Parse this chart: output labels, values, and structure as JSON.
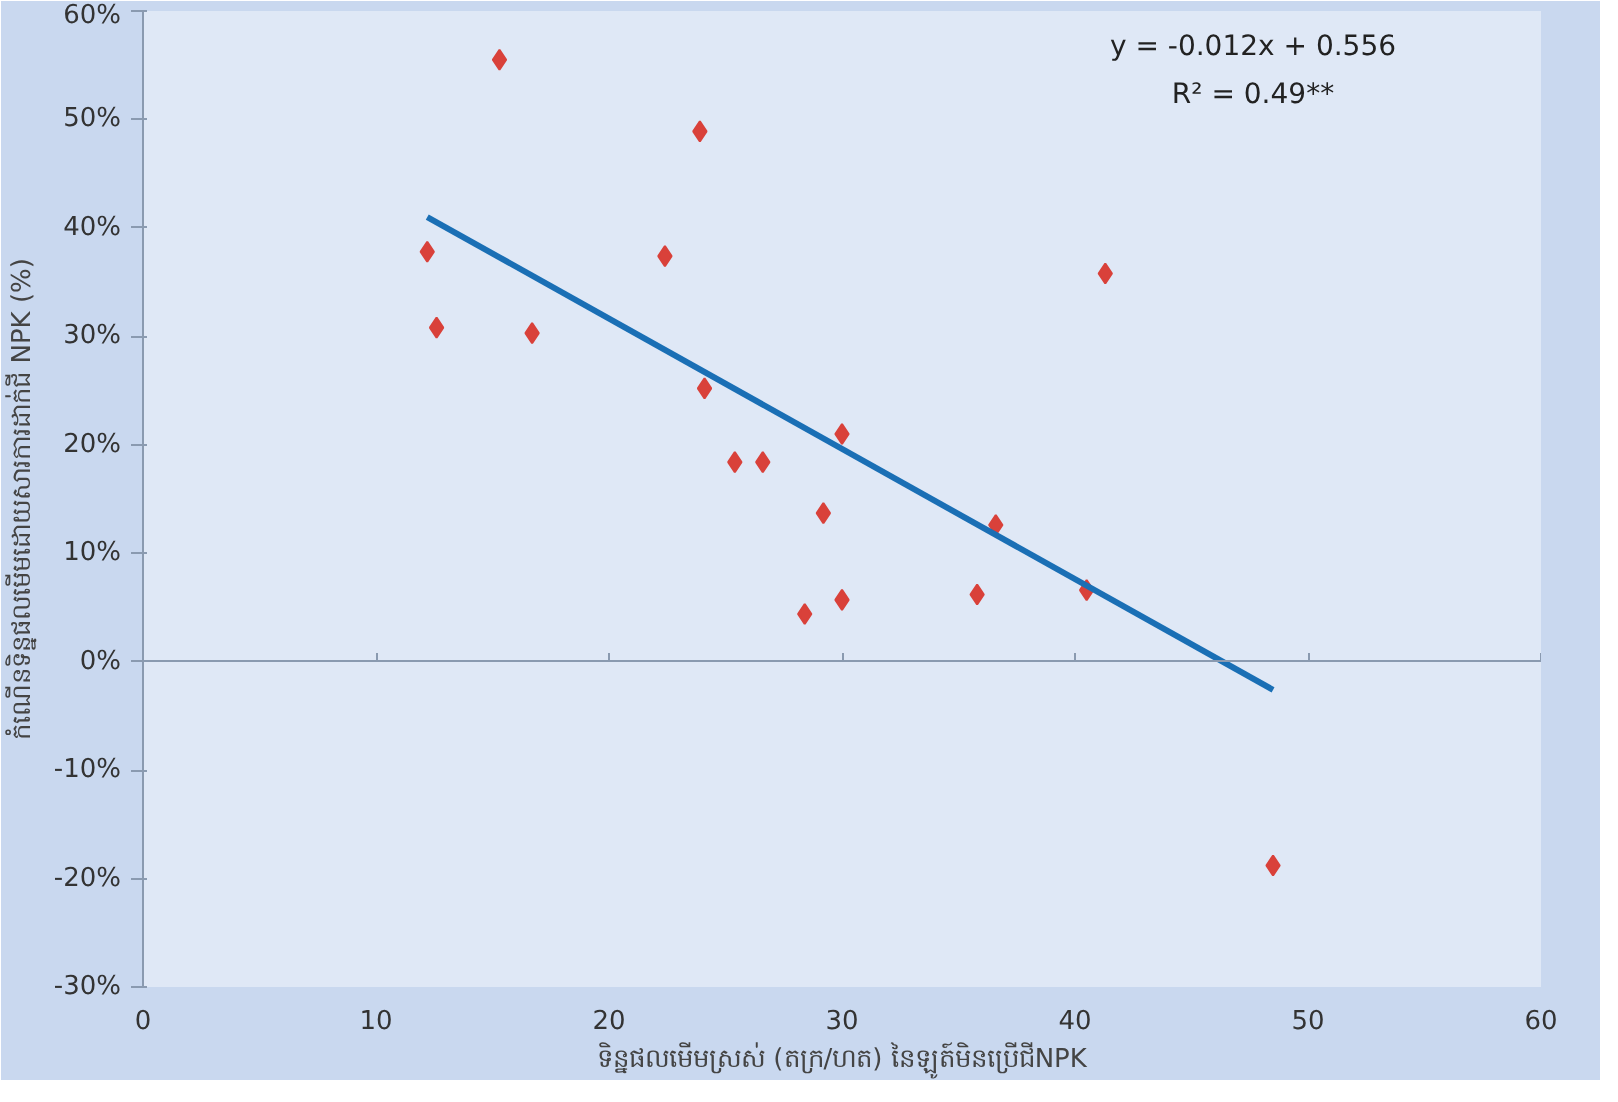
{
  "chart_data": {
    "type": "scatter",
    "xlabel": "ទិន្នផលមើមស្រស់ (តក្រ/ហត) នៃឡូត៍មិនប្រើជីNPK",
    "ylabel": "កំណើនទិន្នផលមើមដោយសារការដាក់ជី NPK (%)",
    "annotations": [
      "y = -0.012x + 0.556",
      "R² = 0.49**"
    ],
    "xlim": [
      0,
      60
    ],
    "xticks": [
      0,
      10,
      20,
      30,
      40,
      50,
      60
    ],
    "ylim": [
      -0.3,
      0.6
    ],
    "yticks": [
      {
        "value": -0.3,
        "label": "-30%"
      },
      {
        "value": -0.2,
        "label": "-20%"
      },
      {
        "value": -0.1,
        "label": "-10%"
      },
      {
        "value": 0,
        "label": "0%"
      },
      {
        "value": 0.1,
        "label": "10%"
      },
      {
        "value": 0.2,
        "label": "20%"
      },
      {
        "value": 0.3,
        "label": "30%"
      },
      {
        "value": 0.4,
        "label": "40%"
      },
      {
        "value": 0.5,
        "label": "50%"
      },
      {
        "value": 0.6,
        "label": "60%"
      }
    ],
    "series": [
      {
        "color": "#d9413a",
        "marker": "diamond",
        "x": [
          15.3,
          23.9,
          12.2,
          22.4,
          12.6,
          16.7,
          24.1,
          30.0,
          25.4,
          26.6,
          29.2,
          36.6,
          28.4,
          30.0,
          35.8,
          41.3,
          40.5,
          48.5
        ],
        "values": [
          0.555,
          0.489,
          0.378,
          0.374,
          0.308,
          0.303,
          0.252,
          0.21,
          0.184,
          0.184,
          0.137,
          0.126,
          0.044,
          0.057,
          0.062,
          0.358,
          0.066,
          -0.188
        ]
      },
      {
        "type": "line",
        "marker": "none",
        "color": "#1a6fb5",
        "x": [
          12.2,
          48.5
        ],
        "values": [
          0.41,
          -0.026
        ]
      }
    ]
  }
}
